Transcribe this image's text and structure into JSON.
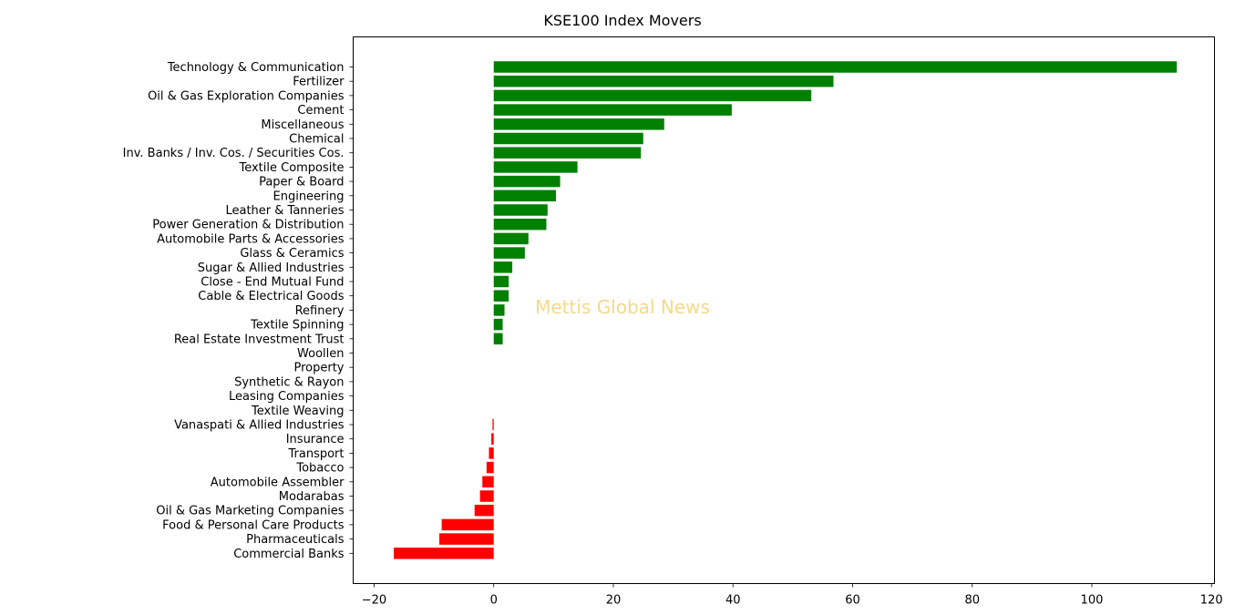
{
  "chart_data": {
    "type": "bar",
    "orientation": "horizontal",
    "title": "KSE100 Index Movers",
    "xlabel": "",
    "ylabel": "",
    "xlim": [
      -23.5,
      120.5
    ],
    "xticks": [
      -20,
      0,
      20,
      40,
      60,
      80,
      100,
      120
    ],
    "xtick_labels": [
      "−20",
      "0",
      "20",
      "40",
      "60",
      "80",
      "100",
      "120"
    ],
    "grid": false,
    "positive_color": "#008000",
    "negative_color": "#ff0000",
    "categories": [
      "Technology & Communication",
      "Fertilizer",
      "Oil & Gas Exploration Companies",
      "Cement",
      "Miscellaneous",
      "Chemical",
      "Inv. Banks / Inv. Cos. / Securities Cos.",
      "Textile Composite",
      "Paper & Board",
      "Engineering",
      "Leather & Tanneries",
      "Power Generation & Distribution",
      "Automobile Parts & Accessories",
      "Glass & Ceramics",
      "Sugar & Allied Industries",
      "Close - End Mutual Fund",
      "Cable & Electrical Goods",
      "Refinery",
      "Textile Spinning",
      "Real Estate Investment Trust",
      "Woollen",
      "Property",
      "Synthetic & Rayon",
      "Leasing Companies",
      "Textile Weaving",
      "Vanaspati & Allied Industries",
      "Insurance",
      "Transport",
      "Tobacco",
      "Automobile Assembler",
      "Modarabas",
      "Oil & Gas Marketing Companies",
      "Food & Personal Care Products",
      "Pharmaceuticals",
      "Commercial Banks"
    ],
    "values": [
      114.2,
      56.8,
      53.1,
      39.8,
      28.5,
      25.0,
      24.6,
      14.0,
      11.1,
      10.4,
      9.0,
      8.8,
      5.8,
      5.2,
      3.1,
      2.5,
      2.5,
      1.8,
      1.5,
      1.5,
      0.0,
      0.0,
      0.0,
      0.0,
      0.0,
      -0.2,
      -0.4,
      -0.8,
      -1.2,
      -1.9,
      -2.3,
      -3.2,
      -8.7,
      -9.1,
      -16.7
    ],
    "watermark": {
      "text": "Mettis Global News",
      "color": "#f5d88a"
    }
  }
}
